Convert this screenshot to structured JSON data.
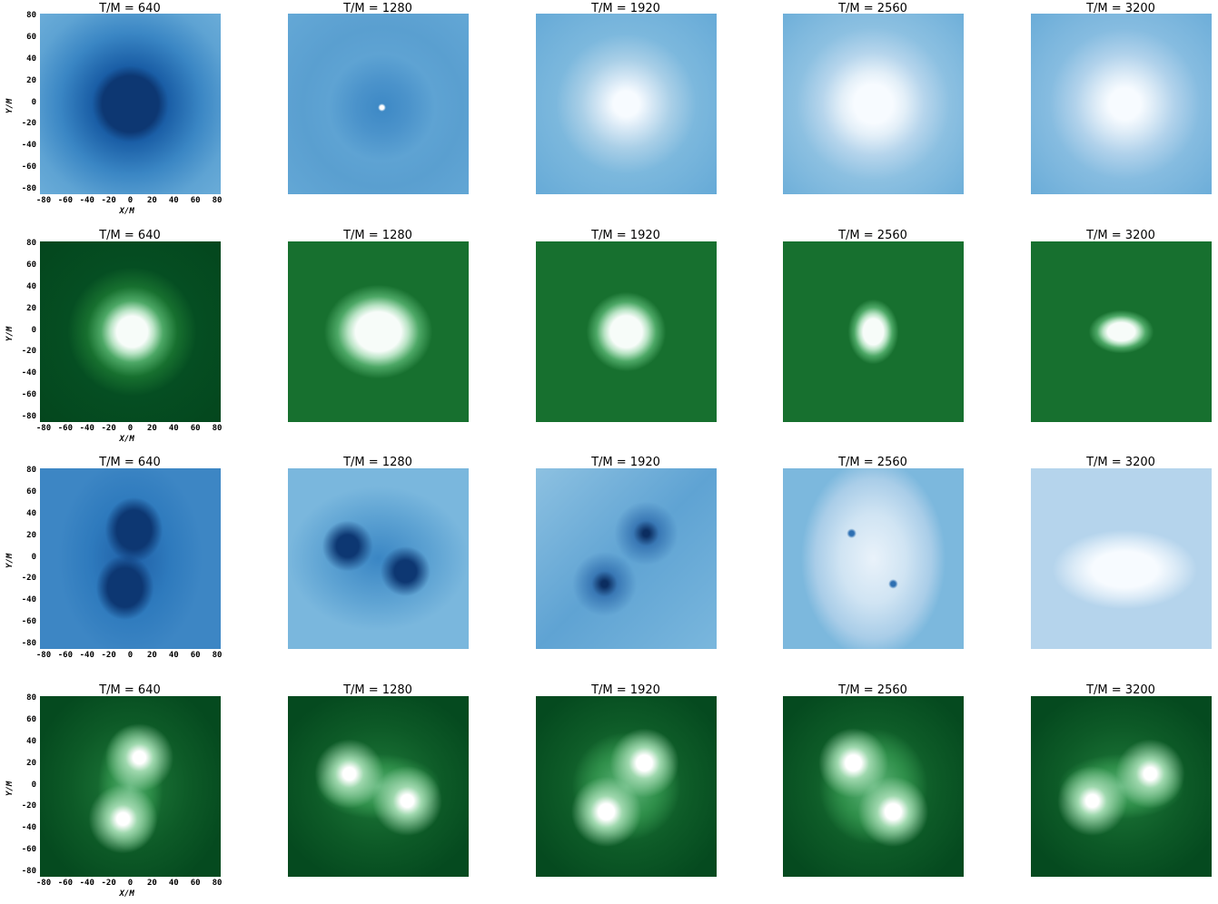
{
  "figure": {
    "rows": [
      {
        "colormap": "blues",
        "titles": [
          "T/M = 640",
          "T/M = 1280",
          "T/M = 1920",
          "T/M = 2560",
          "T/M = 3200"
        ],
        "axes": {
          "ylabel": "Y/M",
          "xlabel": "X/M",
          "yticks": [
            "80",
            "60",
            "40",
            "20",
            "0",
            "-20",
            "-40",
            "-60",
            "-80"
          ],
          "xticks": [
            "-80",
            "-60",
            "-40",
            "-20",
            "0",
            "20",
            "40",
            "60",
            "80"
          ]
        }
      },
      {
        "colormap": "greens",
        "titles": [
          "T/M = 640",
          "T/M = 1280",
          "T/M = 1920",
          "T/M = 2560",
          "T/M = 3200"
        ],
        "axes": {
          "ylabel": "Y/M",
          "xlabel": "X/M",
          "yticks": [
            "80",
            "60",
            "40",
            "20",
            "0",
            "-20",
            "-40",
            "-60",
            "-80"
          ],
          "xticks": [
            "-80",
            "-60",
            "-40",
            "-20",
            "0",
            "20",
            "40",
            "60",
            "80"
          ]
        }
      },
      {
        "colormap": "blues",
        "titles": [
          "T/M = 640",
          "T/M = 1280",
          "T/M = 1920",
          "T/M = 2560",
          "T/M = 3200"
        ],
        "axes": {
          "ylabel": "Y/M",
          "xlabel": "",
          "yticks": [
            "80",
            "60",
            "40",
            "20",
            "0",
            "-20",
            "-40",
            "-60",
            "-80"
          ],
          "xticks": [
            "-80",
            "-60",
            "-40",
            "-20",
            "0",
            "20",
            "40",
            "60",
            "80"
          ]
        }
      },
      {
        "colormap": "greens",
        "titles": [
          "T/M = 640",
          "T/M = 1280",
          "T/M = 1920",
          "T/M = 2560",
          "T/M = 3200"
        ],
        "axes": {
          "ylabel": "Y/M",
          "xlabel": "X/M",
          "yticks": [
            "80",
            "60",
            "40",
            "20",
            "0",
            "-20",
            "-40",
            "-60",
            "-80"
          ],
          "xticks": [
            "-80",
            "-60",
            "-40",
            "-20",
            "0",
            "20",
            "40",
            "60",
            "80"
          ]
        }
      }
    ]
  },
  "colors": {
    "blue_dark": "#0b3a6e",
    "blue_mid": "#4a90c8",
    "blue_light": "#a8cfe8",
    "green_dark": "#04461d",
    "green_mid": "#2f8f4a",
    "white": "#f6fbff"
  }
}
